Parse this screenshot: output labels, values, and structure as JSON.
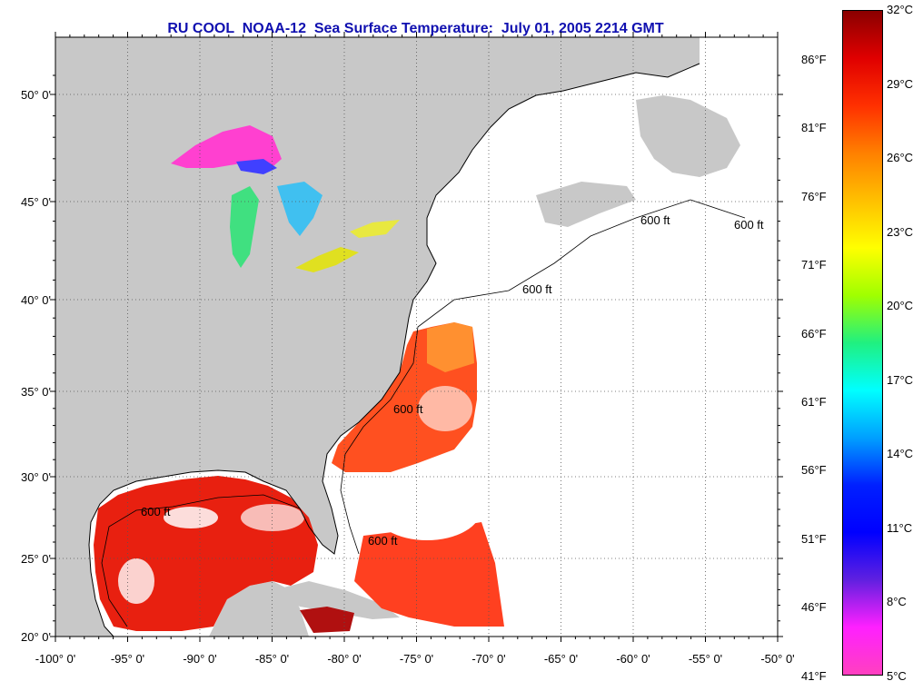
{
  "title": "RU COOL  NOAA-12  Sea Surface Temperature:  July 01, 2005 2214 GMT",
  "map": {
    "lon_ticks": [
      {
        "value": -100,
        "label": "-100° 0'"
      },
      {
        "value": -95,
        "label": "-95° 0'"
      },
      {
        "value": -90,
        "label": "-90° 0'"
      },
      {
        "value": -85,
        "label": "-85° 0'"
      },
      {
        "value": -80,
        "label": "-80° 0'"
      },
      {
        "value": -75,
        "label": "-75° 0'"
      },
      {
        "value": -70,
        "label": "-70° 0'"
      },
      {
        "value": -65,
        "label": "-65° 0'"
      },
      {
        "value": -60,
        "label": "-60° 0'"
      },
      {
        "value": -55,
        "label": "-55° 0'"
      },
      {
        "value": -50,
        "label": "-50° 0'"
      }
    ],
    "lat_ticks": [
      {
        "value": 20,
        "label": "20° 0'"
      },
      {
        "value": 25,
        "label": "25° 0'"
      },
      {
        "value": 30,
        "label": "30° 0'"
      },
      {
        "value": 35,
        "label": "35° 0'"
      },
      {
        "value": 40,
        "label": "40° 0'"
      },
      {
        "value": 45,
        "label": "45° 0'"
      },
      {
        "value": 50,
        "label": "50° 0'"
      }
    ],
    "contour_label": "600 ft",
    "colors": {
      "land": "#c8c8c8",
      "ocean_no_data": "#ffffff",
      "grid": "#555555"
    }
  },
  "colorbar": {
    "celsius_labels": [
      "32°C",
      "29°C",
      "26°C",
      "23°C",
      "20°C",
      "17°C",
      "14°C",
      "11°C",
      "8°C",
      "5°C"
    ],
    "fahrenheit_labels": [
      "86°F",
      "81°F",
      "76°F",
      "71°F",
      "66°F",
      "61°F",
      "56°F",
      "51°F",
      "46°F",
      "41°F"
    ],
    "stops": [
      "#8a0000",
      "#e00000",
      "#ff3000",
      "#ff8000",
      "#ffc000",
      "#ffff00",
      "#a0ff00",
      "#20f080",
      "#00ffff",
      "#00a0ff",
      "#0020ff",
      "#0000ff",
      "#6020e0",
      "#ff20ff",
      "#ff40c0"
    ]
  }
}
